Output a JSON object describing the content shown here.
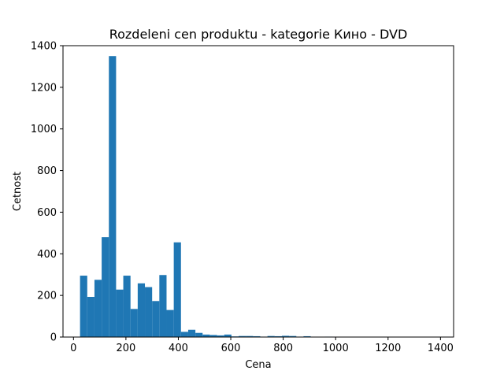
{
  "chart_data": {
    "type": "bar",
    "title": "Rozdeleni cen produktu  - kategorie Кино - DVD",
    "xlabel": "Cena",
    "ylabel": "Cetnost",
    "xlim": [
      -40,
      1450
    ],
    "ylim": [
      0,
      1400
    ],
    "xticks": [
      0,
      200,
      400,
      600,
      800,
      1000,
      1200,
      1400
    ],
    "yticks": [
      0,
      200,
      400,
      600,
      800,
      1000,
      1200,
      1400
    ],
    "grid": false,
    "bar_color": "#1f77b4",
    "bin_width": 27.5,
    "bins": [
      {
        "x0": 25,
        "x1": 52.5,
        "value": 295
      },
      {
        "x0": 52.5,
        "x1": 80,
        "value": 193
      },
      {
        "x0": 80,
        "x1": 107.5,
        "value": 275
      },
      {
        "x0": 107.5,
        "x1": 135,
        "value": 480
      },
      {
        "x0": 135,
        "x1": 162.5,
        "value": 1350
      },
      {
        "x0": 162.5,
        "x1": 190,
        "value": 228
      },
      {
        "x0": 190,
        "x1": 217.5,
        "value": 295
      },
      {
        "x0": 217.5,
        "x1": 245,
        "value": 135
      },
      {
        "x0": 245,
        "x1": 272.5,
        "value": 258
      },
      {
        "x0": 272.5,
        "x1": 300,
        "value": 240
      },
      {
        "x0": 300,
        "x1": 327.5,
        "value": 173
      },
      {
        "x0": 327.5,
        "x1": 355,
        "value": 298
      },
      {
        "x0": 355,
        "x1": 382.5,
        "value": 130
      },
      {
        "x0": 382.5,
        "x1": 410,
        "value": 455
      },
      {
        "x0": 410,
        "x1": 437.5,
        "value": 25
      },
      {
        "x0": 437.5,
        "x1": 465,
        "value": 35
      },
      {
        "x0": 465,
        "x1": 492.5,
        "value": 20
      },
      {
        "x0": 492.5,
        "x1": 520,
        "value": 12
      },
      {
        "x0": 520,
        "x1": 547.5,
        "value": 10
      },
      {
        "x0": 547.5,
        "x1": 575,
        "value": 8
      },
      {
        "x0": 575,
        "x1": 602.5,
        "value": 12
      },
      {
        "x0": 602.5,
        "x1": 630,
        "value": 3
      },
      {
        "x0": 630,
        "x1": 657.5,
        "value": 5
      },
      {
        "x0": 657.5,
        "x1": 685,
        "value": 5
      },
      {
        "x0": 685,
        "x1": 712.5,
        "value": 4
      },
      {
        "x0": 712.5,
        "x1": 740,
        "value": 2
      },
      {
        "x0": 740,
        "x1": 767.5,
        "value": 5
      },
      {
        "x0": 767.5,
        "x1": 795,
        "value": 4
      },
      {
        "x0": 795,
        "x1": 822.5,
        "value": 6
      },
      {
        "x0": 822.5,
        "x1": 850,
        "value": 5
      },
      {
        "x0": 850,
        "x1": 877.5,
        "value": 2
      },
      {
        "x0": 877.5,
        "x1": 905,
        "value": 4
      },
      {
        "x0": 905,
        "x1": 932.5,
        "value": 1
      },
      {
        "x0": 960,
        "x1": 987.5,
        "value": 2
      },
      {
        "x0": 1042.5,
        "x1": 1070,
        "value": 1
      },
      {
        "x0": 1372.5,
        "x1": 1400,
        "value": 1
      }
    ]
  }
}
